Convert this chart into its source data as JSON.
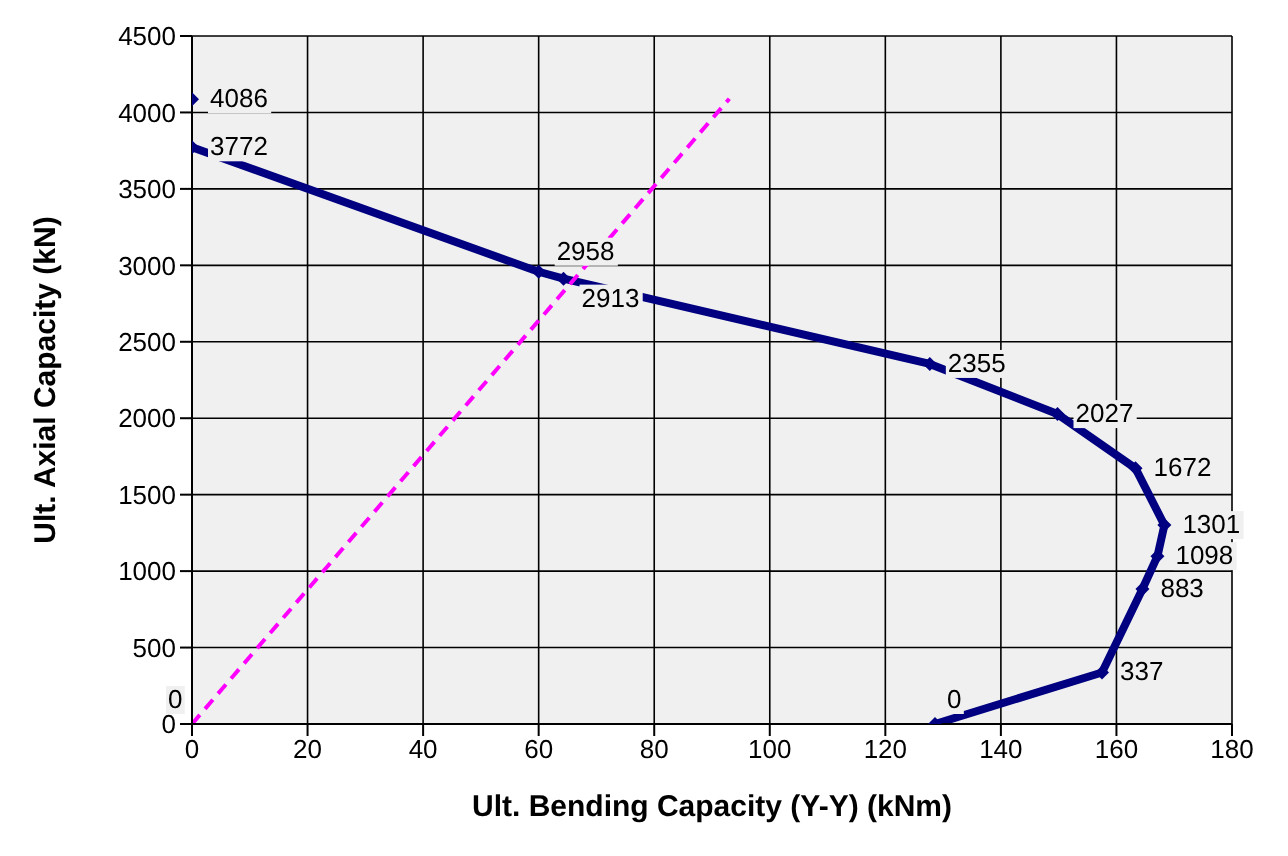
{
  "chart_data": {
    "type": "line",
    "xlabel": "Ult. Bending Capacity (Y-Y) (kNm)",
    "ylabel": "Ult. Axial Capacity (kN)",
    "xlim": [
      0,
      180
    ],
    "xticks": [
      0,
      20,
      40,
      60,
      80,
      100,
      120,
      140,
      160,
      180
    ],
    "ylim": [
      0,
      4500
    ],
    "yticks": [
      0,
      500,
      1000,
      1500,
      2000,
      2500,
      3000,
      3500,
      4000,
      4500
    ],
    "grid": true,
    "legend": false,
    "series": [
      {
        "type": "scatter",
        "color": "#000080",
        "marker": "diamond",
        "x": [
          0
        ],
        "values": [
          4086
        ],
        "value_labels": [
          "4086"
        ]
      },
      {
        "color": "#000080",
        "marker": "diamond",
        "line_style": "solid",
        "x": [
          0,
          60,
          64.3,
          127.7,
          149.8,
          163.3,
          168.3,
          167.1,
          164.5,
          157.5,
          128.6
        ],
        "values": [
          3772,
          2958,
          2913,
          2355,
          2027,
          1672,
          1301,
          1098,
          883,
          337,
          0
        ],
        "value_labels": [
          "3772",
          "2958",
          "2913",
          "2355",
          "2027",
          "1672",
          "1301",
          "1098",
          "883",
          "337",
          "0"
        ]
      },
      {
        "type": "line",
        "color": "#ff00ff",
        "marker": "none",
        "line_style": "dashed",
        "x": [
          0,
          93
        ],
        "values": [
          0,
          4090
        ],
        "value_labels": [
          "0",
          null
        ]
      }
    ]
  }
}
